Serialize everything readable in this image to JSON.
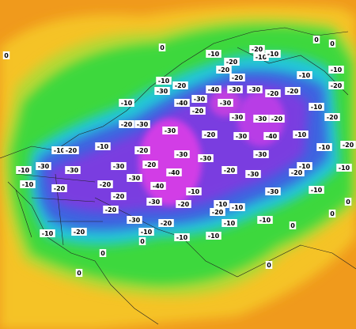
{
  "map": {
    "labels": [
      "-10",
      "-20",
      "-10",
      "-10",
      "-20",
      "-20",
      "-20",
      "-10",
      "-10",
      "-20",
      "-10",
      "-20",
      "-30",
      "-40",
      "-30",
      "-30",
      "-20",
      "-20",
      "-10",
      "-40",
      "-30",
      "-30",
      "-20",
      "-30",
      "-20",
      "-30",
      "-10",
      "-20",
      "-20",
      "-30",
      "-30",
      "-20",
      "-30",
      "-40",
      "-10",
      "-10",
      "-20",
      "-10",
      "-20",
      "-10",
      "-20",
      "-30",
      "-30",
      "-30",
      "-10",
      "-10",
      "-30",
      "-30",
      "-30",
      "-20",
      "-40",
      "-20",
      "-30",
      "-20",
      "-10",
      "-10",
      "-20",
      "-20",
      "-30",
      "-40",
      "-10",
      "-30",
      "-20",
      "-30",
      "-20",
      "-10",
      "-10",
      "-10",
      "-20",
      "-20",
      "-30",
      "-20",
      "-10",
      "-10",
      "-10",
      "-20",
      "-10",
      "-10",
      "-10",
      "0",
      "0",
      "0",
      "0",
      "0",
      "0",
      "0",
      "0",
      "0",
      "0",
      "0"
    ]
  }
}
